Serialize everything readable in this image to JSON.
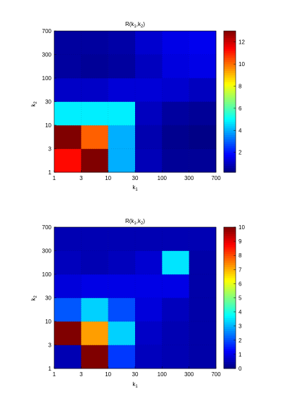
{
  "chart_data": [
    {
      "type": "heatmap",
      "title": "R(k1,k2)",
      "title_main": "R(k",
      "title_sub1": "1",
      "title_mid": ",k",
      "title_sub2": "2",
      "title_end": ")",
      "xlabel": "k",
      "xlabel_sub": "1",
      "ylabel": "k",
      "ylabel_sub": "2",
      "x_ticks": [
        "1",
        "3",
        "10",
        "30",
        "100",
        "300",
        "700"
      ],
      "y_ticks": [
        "1",
        "3",
        "10",
        "30",
        "100",
        "300",
        "700"
      ],
      "colorbar_ticks": [
        "2",
        "4",
        "6",
        "8",
        "10",
        "12"
      ],
      "colorbar_values": [
        2,
        4,
        6,
        8,
        10,
        12
      ],
      "colorbar_range": [
        0.2,
        13
      ],
      "colormap": "jet",
      "scale": "log-log",
      "grid": true,
      "values": [
        [
          11.3,
          13.0,
          4.0,
          0.9,
          0.5,
          0.5
        ],
        [
          13.0,
          10.2,
          4.0,
          0.8,
          0.4,
          0.3
        ],
        [
          4.8,
          4.8,
          4.8,
          1.0,
          0.6,
          0.5
        ],
        [
          1.1,
          1.1,
          1.3,
          1.3,
          1.2,
          1.0
        ],
        [
          0.6,
          0.5,
          0.6,
          1.0,
          1.4,
          1.5
        ],
        [
          0.6,
          0.6,
          0.7,
          1.2,
          1.5,
          1.6
        ]
      ]
    },
    {
      "type": "heatmap",
      "title": "R(k1,k2)",
      "title_main": "R(k",
      "title_sub1": "1",
      "title_mid": ",k",
      "title_sub2": "2",
      "title_end": ")",
      "xlabel": "k",
      "xlabel_sub": "1",
      "ylabel": "k",
      "ylabel_sub": "2",
      "x_ticks": [
        "1",
        "3",
        "10",
        "30",
        "100",
        "300",
        "700"
      ],
      "y_ticks": [
        "1",
        "3",
        "10",
        "30",
        "100",
        "300",
        "700"
      ],
      "colorbar_ticks": [
        "0",
        "1",
        "2",
        "3",
        "4",
        "5",
        "6",
        "7",
        "8",
        "9",
        "10"
      ],
      "colorbar_values": [
        0,
        1,
        2,
        3,
        4,
        5,
        6,
        7,
        8,
        9,
        10
      ],
      "colorbar_range": [
        0,
        10
      ],
      "colormap": "jet",
      "scale": "log-log",
      "grid": true,
      "values": [
        [
          0.5,
          10.0,
          1.8,
          0.6,
          0.5,
          0.4
        ],
        [
          10.0,
          7.2,
          3.3,
          0.7,
          0.5,
          0.4
        ],
        [
          2.1,
          3.3,
          2.0,
          0.9,
          0.6,
          0.4
        ],
        [
          0.9,
          1.0,
          1.0,
          1.0,
          1.0,
          0.4
        ],
        [
          0.6,
          0.5,
          0.6,
          0.8,
          3.5,
          0.4
        ],
        [
          0.5,
          0.5,
          0.5,
          0.5,
          0.5,
          0.5
        ]
      ]
    }
  ]
}
